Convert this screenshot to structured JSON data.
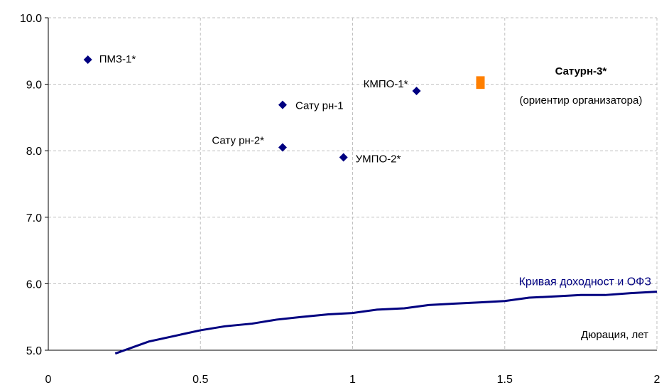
{
  "chart_data": {
    "type": "scatter",
    "title": "",
    "xlabel": "Дюрация, лет",
    "ylabel": "",
    "xlim": [
      0,
      2
    ],
    "ylim": [
      5.0,
      10.0
    ],
    "grid": true,
    "x_ticks": [
      "0",
      "0.5",
      "1",
      "1.5",
      "2"
    ],
    "y_ticks": [
      "5.0",
      "6.0",
      "7.0",
      "8.0",
      "9.0",
      "10.0"
    ],
    "x_tick_values": [
      0,
      0.5,
      1,
      1.5,
      2
    ],
    "y_tick_values": [
      5,
      6,
      7,
      8,
      9,
      10
    ],
    "colors": {
      "points": "#000080",
      "highlight": "#ff7f00",
      "curve": "#000080",
      "grid": "#bfbfbf"
    },
    "points": [
      {
        "name": "ПМЗ-1*",
        "x": 0.13,
        "y": 9.37
      },
      {
        "name": "Сату рн-1",
        "x": 0.77,
        "y": 8.69
      },
      {
        "name": "Сату рн-2*",
        "x": 0.77,
        "y": 8.05
      },
      {
        "name": "УМПО-2*",
        "x": 0.97,
        "y": 7.9
      },
      {
        "name": "КМПО-1*",
        "x": 1.21,
        "y": 8.9
      }
    ],
    "highlight": {
      "name": "Сатурн-3*",
      "note": "(ориентир организатора)",
      "x": 1.42,
      "y_low": 8.93,
      "y_high": 9.12
    },
    "curve": {
      "name": "Кривая доходност и ОФЗ",
      "x": [
        0.22,
        0.33,
        0.42,
        0.5,
        0.58,
        0.67,
        0.75,
        0.83,
        0.92,
        1.0,
        1.08,
        1.17,
        1.25,
        1.33,
        1.42,
        1.5,
        1.58,
        1.67,
        1.75,
        1.83,
        1.92,
        2.0
      ],
      "y": [
        4.95,
        5.13,
        5.22,
        5.3,
        5.36,
        5.4,
        5.46,
        5.5,
        5.54,
        5.56,
        5.61,
        5.63,
        5.68,
        5.7,
        5.72,
        5.74,
        5.79,
        5.81,
        5.83,
        5.83,
        5.86,
        5.88
      ]
    }
  }
}
